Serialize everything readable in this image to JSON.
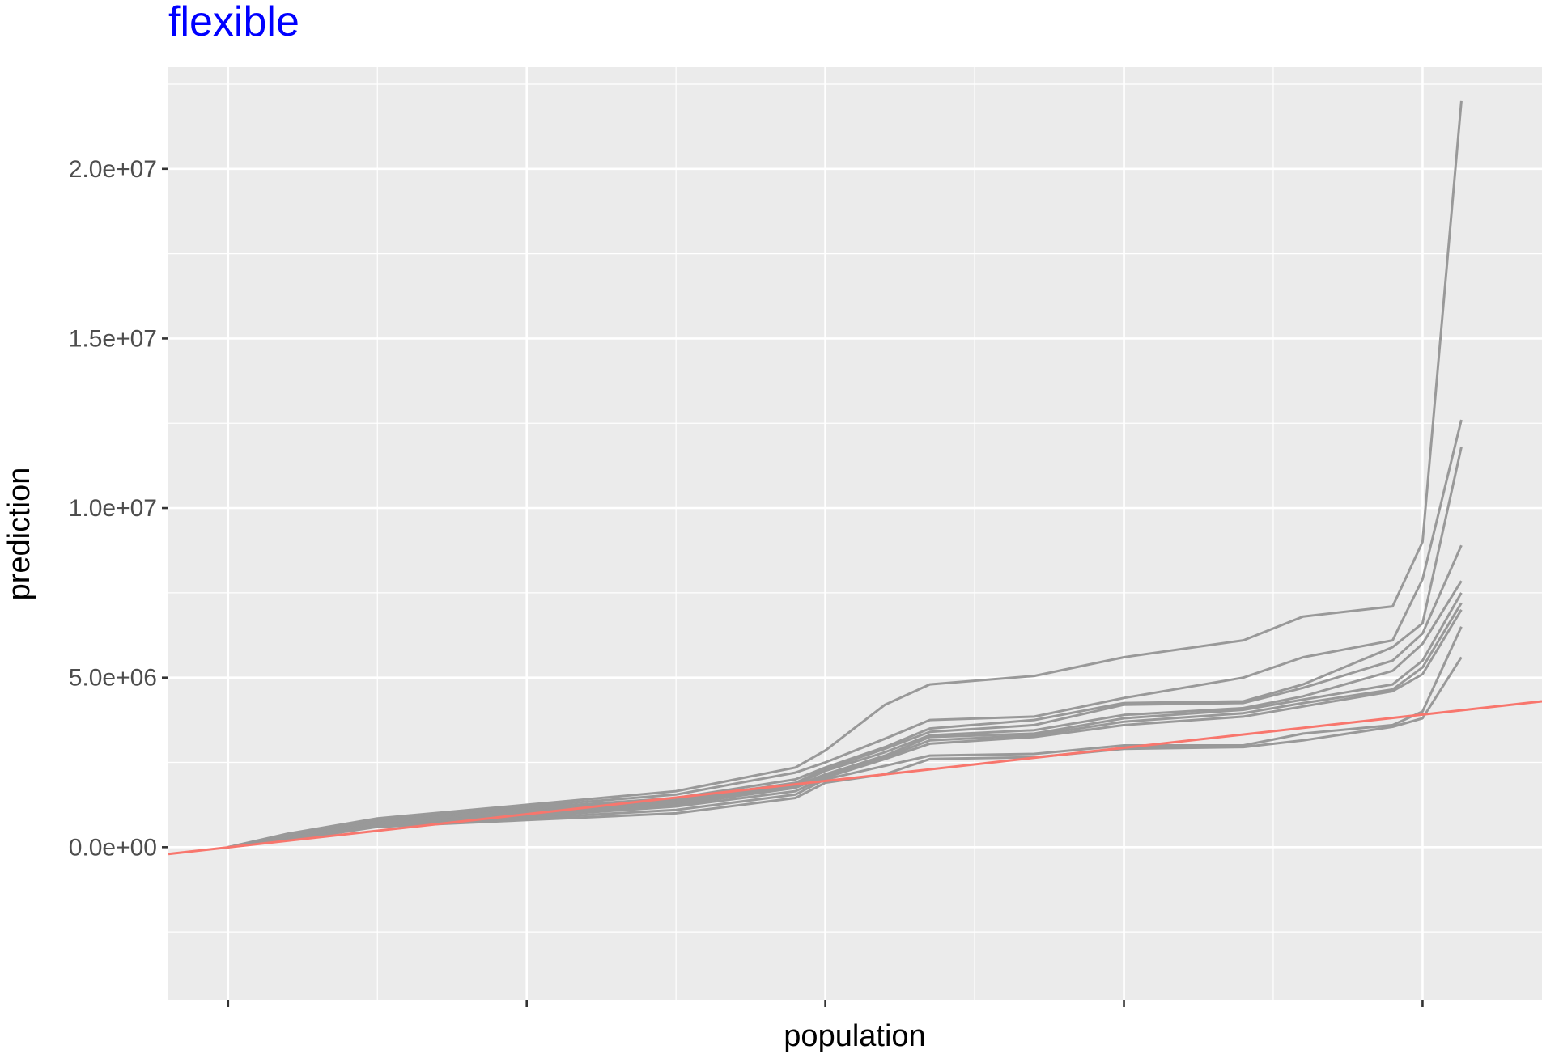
{
  "chart_data": {
    "type": "line",
    "title": "flexible",
    "xlabel": "population",
    "ylabel": "prediction",
    "ylim": [
      -4500000,
      23000000
    ],
    "xlim": [
      -0.2,
      4.4
    ],
    "x_ticks": [
      0,
      1,
      2,
      3,
      4
    ],
    "x_tick_labels": [
      "",
      "",
      "",
      "",
      ""
    ],
    "y_ticks": [
      0,
      5000000,
      10000000,
      15000000,
      20000000
    ],
    "y_tick_labels": [
      "0.0e+00",
      "5.0e+06",
      "1.0e+07",
      "1.5e+07",
      "2.0e+07"
    ],
    "grid": true,
    "legend": "none",
    "reference_line": {
      "color": "#F8766D",
      "x": [
        -0.2,
        4.4
      ],
      "y": [
        -200000,
        4300000
      ]
    },
    "series_color": "#999999",
    "series": [
      {
        "x": [
          0,
          0.2,
          0.5,
          1.0,
          1.5,
          1.9,
          2.0,
          2.2,
          2.35,
          2.7,
          3.0,
          3.4,
          3.6,
          3.9,
          4.0,
          4.13
        ],
        "y": [
          0,
          400000,
          850000,
          1250000,
          1650000,
          2350000,
          2850000,
          4200000,
          4800000,
          5050000,
          5600000,
          6100000,
          6800000,
          7100000,
          9000000,
          22000000
        ]
      },
      {
        "x": [
          0,
          0.2,
          0.5,
          1.0,
          1.5,
          1.9,
          2.0,
          2.2,
          2.35,
          2.7,
          3.0,
          3.4,
          3.6,
          3.9,
          4.0,
          4.13
        ],
        "y": [
          0,
          380000,
          820000,
          1200000,
          1550000,
          2200000,
          2500000,
          3200000,
          3750000,
          3850000,
          4400000,
          5000000,
          5600000,
          6100000,
          7900000,
          12600000
        ]
      },
      {
        "x": [
          0,
          0.2,
          0.5,
          1.0,
          1.5,
          1.9,
          2.0,
          2.2,
          2.35,
          2.7,
          3.0,
          3.4,
          3.6,
          3.9,
          4.0,
          4.13
        ],
        "y": [
          0,
          340000,
          780000,
          1150000,
          1450000,
          2000000,
          2350000,
          2950000,
          3500000,
          3750000,
          4250000,
          4300000,
          4800000,
          5900000,
          6600000,
          11800000
        ]
      },
      {
        "x": [
          0,
          0.2,
          0.5,
          1.0,
          1.5,
          1.9,
          2.0,
          2.2,
          2.35,
          2.7,
          3.0,
          3.4,
          3.6,
          3.9,
          4.0,
          4.13
        ],
        "y": [
          0,
          320000,
          760000,
          1100000,
          1400000,
          1900000,
          2300000,
          2900000,
          3400000,
          3600000,
          4200000,
          4250000,
          4700000,
          5500000,
          6300000,
          8900000
        ]
      },
      {
        "x": [
          0,
          0.2,
          0.5,
          1.0,
          1.5,
          1.9,
          2.0,
          2.2,
          2.35,
          2.7,
          3.0,
          3.4,
          3.6,
          3.9,
          4.0,
          4.13
        ],
        "y": [
          0,
          300000,
          740000,
          1050000,
          1350000,
          1850000,
          2250000,
          2800000,
          3300000,
          3450000,
          3900000,
          4100000,
          4450000,
          5200000,
          6000000,
          7850000
        ]
      },
      {
        "x": [
          0,
          0.2,
          0.5,
          1.0,
          1.5,
          1.9,
          2.0,
          2.2,
          2.35,
          2.7,
          3.0,
          3.4,
          3.6,
          3.9,
          4.0,
          4.13
        ],
        "y": [
          0,
          280000,
          720000,
          1000000,
          1300000,
          1800000,
          2150000,
          2700000,
          3250000,
          3350000,
          3800000,
          4050000,
          4350000,
          4800000,
          5500000,
          7500000
        ]
      },
      {
        "x": [
          0,
          0.2,
          0.5,
          1.0,
          1.5,
          1.9,
          2.0,
          2.2,
          2.35,
          2.7,
          3.0,
          3.4,
          3.6,
          3.9,
          4.0,
          4.13
        ],
        "y": [
          0,
          260000,
          690000,
          950000,
          1250000,
          1750000,
          2100000,
          2650000,
          3150000,
          3300000,
          3700000,
          3950000,
          4250000,
          4650000,
          5300000,
          7200000
        ]
      },
      {
        "x": [
          0,
          0.2,
          0.5,
          1.0,
          1.5,
          1.9,
          2.0,
          2.2,
          2.35,
          2.7,
          3.0,
          3.4,
          3.6,
          3.9,
          4.0,
          4.13
        ],
        "y": [
          0,
          240000,
          660000,
          900000,
          1200000,
          1650000,
          2050000,
          2600000,
          3050000,
          3250000,
          3600000,
          3850000,
          4150000,
          4600000,
          5100000,
          7000000
        ]
      },
      {
        "x": [
          0,
          0.2,
          0.5,
          1.0,
          1.5,
          1.9,
          2.0,
          2.2,
          2.35,
          2.7,
          3.0,
          3.4,
          3.6,
          3.9,
          4.0,
          4.13
        ],
        "y": [
          0,
          220000,
          630000,
          850000,
          1100000,
          1550000,
          2000000,
          2400000,
          2700000,
          2750000,
          3000000,
          3000000,
          3350000,
          3600000,
          4000000,
          6500000
        ]
      },
      {
        "x": [
          0,
          0.2,
          0.5,
          1.0,
          1.5,
          1.9,
          2.0,
          2.2,
          2.35,
          2.7,
          3.0,
          3.4,
          3.6,
          3.9,
          4.0,
          4.13
        ],
        "y": [
          0,
          200000,
          600000,
          800000,
          1000000,
          1450000,
          1900000,
          2150000,
          2600000,
          2650000,
          2900000,
          2950000,
          3150000,
          3550000,
          3800000,
          5600000
        ]
      }
    ]
  }
}
